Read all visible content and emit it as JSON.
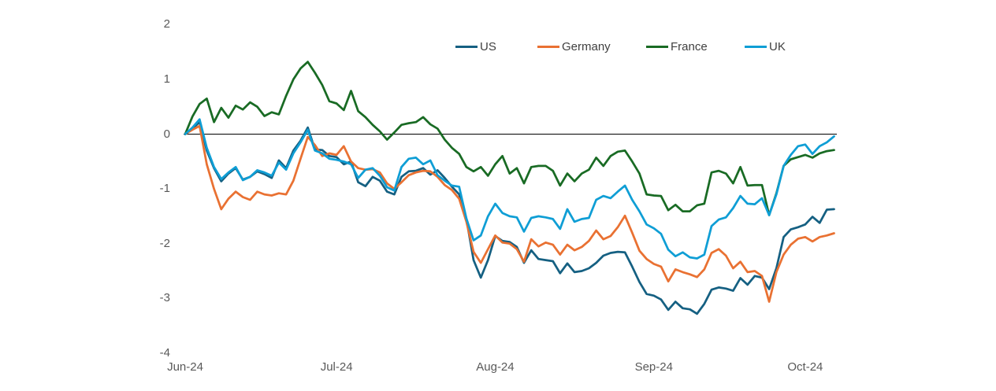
{
  "chart_data": {
    "type": "line",
    "title": "",
    "x_ticklabels": [
      "Jun-24",
      "Jul-24",
      "Aug-24",
      "Sep-24",
      "Oct-24"
    ],
    "x_tick_point_indices": [
      0,
      21,
      43,
      65,
      86
    ],
    "n_points": 91,
    "y_ticks": [
      2,
      1,
      0,
      -1,
      -2,
      -3,
      -4
    ],
    "ylim": [
      -4,
      2
    ],
    "grid": "none",
    "zero_line": true,
    "zero_line_color": "#000000",
    "axis_label_color": "#595959",
    "legend_text_color": "#404040",
    "legend_position": "top",
    "series": [
      {
        "name": "US",
        "color": "#156082",
        "values": [
          0.0,
          0.1,
          0.22,
          -0.3,
          -0.62,
          -0.86,
          -0.72,
          -0.62,
          -0.83,
          -0.78,
          -0.68,
          -0.73,
          -0.8,
          -0.48,
          -0.62,
          -0.3,
          -0.12,
          0.12,
          -0.28,
          -0.29,
          -0.4,
          -0.42,
          -0.55,
          -0.5,
          -0.88,
          -0.95,
          -0.78,
          -0.85,
          -1.05,
          -1.1,
          -0.78,
          -0.68,
          -0.67,
          -0.62,
          -0.74,
          -0.66,
          -0.8,
          -0.96,
          -1.1,
          -1.55,
          -2.3,
          -2.62,
          -2.3,
          -1.86,
          -1.95,
          -1.97,
          -2.06,
          -2.35,
          -2.12,
          -2.28,
          -2.3,
          -2.32,
          -2.54,
          -2.36,
          -2.52,
          -2.5,
          -2.45,
          -2.35,
          -2.22,
          -2.17,
          -2.15,
          -2.16,
          -2.42,
          -2.7,
          -2.92,
          -2.95,
          -3.02,
          -3.21,
          -3.06,
          -3.18,
          -3.2,
          -3.28,
          -3.1,
          -2.84,
          -2.8,
          -2.82,
          -2.86,
          -2.63,
          -2.75,
          -2.59,
          -2.62,
          -2.83,
          -2.45,
          -1.88,
          -1.74,
          -1.7,
          -1.65,
          -1.51,
          -1.62,
          -1.38,
          -1.37
        ]
      },
      {
        "name": "Germany",
        "color": "#E97132",
        "values": [
          0.0,
          0.08,
          0.15,
          -0.55,
          -1.0,
          -1.37,
          -1.18,
          -1.05,
          -1.15,
          -1.2,
          -1.05,
          -1.1,
          -1.12,
          -1.08,
          -1.1,
          -0.85,
          -0.45,
          -0.05,
          -0.2,
          -0.4,
          -0.35,
          -0.38,
          -0.22,
          -0.5,
          -0.62,
          -0.65,
          -0.64,
          -0.7,
          -0.9,
          -1.0,
          -0.88,
          -0.75,
          -0.7,
          -0.67,
          -0.68,
          -0.78,
          -0.93,
          -1.02,
          -1.18,
          -1.6,
          -2.15,
          -2.35,
          -2.1,
          -1.85,
          -1.98,
          -2.0,
          -2.1,
          -2.33,
          -1.92,
          -2.05,
          -1.98,
          -2.02,
          -2.2,
          -2.02,
          -2.12,
          -2.06,
          -1.95,
          -1.76,
          -1.92,
          -1.86,
          -1.7,
          -1.49,
          -1.8,
          -2.13,
          -2.28,
          -2.37,
          -2.42,
          -2.69,
          -2.47,
          -2.52,
          -2.56,
          -2.61,
          -2.47,
          -2.17,
          -2.1,
          -2.22,
          -2.45,
          -2.33,
          -2.52,
          -2.5,
          -2.59,
          -3.06,
          -2.52,
          -2.2,
          -2.02,
          -1.91,
          -1.88,
          -1.96,
          -1.88,
          -1.85,
          -1.81
        ]
      },
      {
        "name": "France",
        "color": "#196B24",
        "values": [
          0.0,
          0.32,
          0.55,
          0.65,
          0.22,
          0.48,
          0.3,
          0.52,
          0.45,
          0.58,
          0.5,
          0.33,
          0.4,
          0.36,
          0.7,
          1.0,
          1.2,
          1.32,
          1.12,
          0.9,
          0.6,
          0.56,
          0.44,
          0.79,
          0.42,
          0.31,
          0.17,
          0.05,
          -0.1,
          0.03,
          0.17,
          0.2,
          0.22,
          0.31,
          0.18,
          0.1,
          -0.1,
          -0.25,
          -0.36,
          -0.6,
          -0.68,
          -0.6,
          -0.76,
          -0.55,
          -0.4,
          -0.72,
          -0.62,
          -0.9,
          -0.6,
          -0.58,
          -0.58,
          -0.67,
          -0.94,
          -0.72,
          -0.86,
          -0.72,
          -0.65,
          -0.43,
          -0.58,
          -0.4,
          -0.32,
          -0.3,
          -0.5,
          -0.72,
          -1.1,
          -1.12,
          -1.13,
          -1.39,
          -1.29,
          -1.41,
          -1.41,
          -1.3,
          -1.27,
          -0.7,
          -0.67,
          -0.72,
          -0.9,
          -0.6,
          -0.94,
          -0.93,
          -0.93,
          -1.48,
          -1.08,
          -0.58,
          -0.46,
          -0.42,
          -0.38,
          -0.43,
          -0.35,
          -0.31,
          -0.29
        ]
      },
      {
        "name": "UK",
        "color": "#0F9ED5",
        "values": [
          0.0,
          0.12,
          0.27,
          -0.25,
          -0.6,
          -0.82,
          -0.7,
          -0.6,
          -0.84,
          -0.78,
          -0.66,
          -0.7,
          -0.76,
          -0.52,
          -0.65,
          -0.35,
          -0.15,
          0.08,
          -0.3,
          -0.35,
          -0.45,
          -0.47,
          -0.5,
          -0.55,
          -0.8,
          -0.65,
          -0.62,
          -0.76,
          -0.97,
          -1.03,
          -0.6,
          -0.45,
          -0.43,
          -0.55,
          -0.48,
          -0.75,
          -0.85,
          -0.94,
          -0.96,
          -1.54,
          -1.94,
          -1.85,
          -1.5,
          -1.27,
          -1.44,
          -1.5,
          -1.52,
          -1.78,
          -1.53,
          -1.5,
          -1.52,
          -1.55,
          -1.73,
          -1.37,
          -1.6,
          -1.55,
          -1.53,
          -1.2,
          -1.13,
          -1.17,
          -1.05,
          -0.94,
          -1.2,
          -1.41,
          -1.65,
          -1.72,
          -1.82,
          -2.11,
          -2.23,
          -2.16,
          -2.25,
          -2.27,
          -2.2,
          -1.68,
          -1.56,
          -1.52,
          -1.35,
          -1.13,
          -1.27,
          -1.28,
          -1.17,
          -1.48,
          -1.1,
          -0.58,
          -0.38,
          -0.22,
          -0.19,
          -0.36,
          -0.22,
          -0.15,
          -0.04
        ]
      }
    ]
  }
}
